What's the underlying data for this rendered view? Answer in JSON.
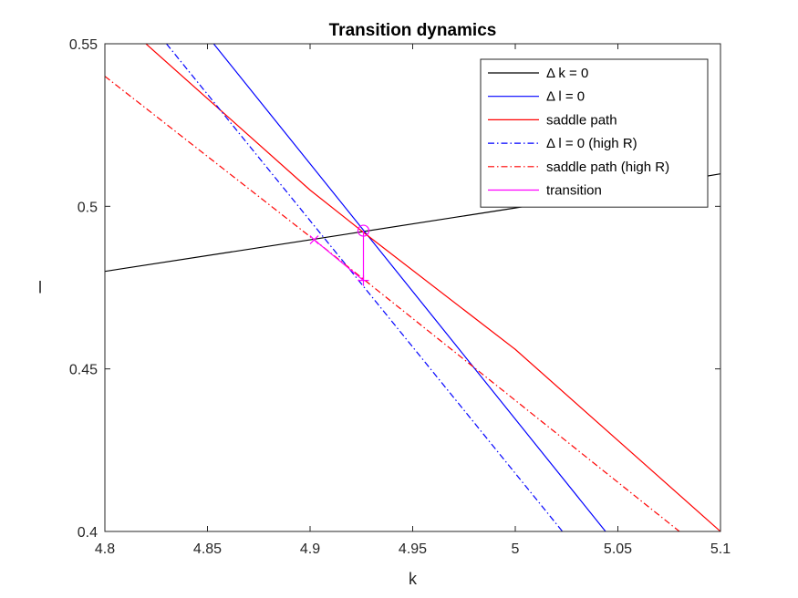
{
  "chart_data": {
    "type": "line",
    "title": "Transition dynamics",
    "xlabel": "k",
    "ylabel": "l",
    "xlim": [
      4.8,
      5.1
    ],
    "ylim": [
      0.4,
      0.55
    ],
    "xticks": [
      4.8,
      4.85,
      4.9,
      4.95,
      5,
      5.05,
      5.1
    ],
    "xtick_labels": [
      "4.8",
      "4.85",
      "4.9",
      "4.95",
      "5",
      "5.05",
      "5.1"
    ],
    "yticks": [
      0.4,
      0.45,
      0.5,
      0.55
    ],
    "ytick_labels": [
      "0.4",
      "0.45",
      "0.5",
      "0.55"
    ],
    "grid": false,
    "legend_position": "top-right",
    "series": [
      {
        "name": "Δ k = 0",
        "color": "#000000",
        "style": "solid",
        "x": [
          4.8,
          4.9,
          5.0,
          5.1
        ],
        "y": [
          0.48,
          0.4897,
          0.4995,
          0.51
        ]
      },
      {
        "name": "Δ l = 0",
        "color": "#0000ff",
        "style": "solid",
        "x": [
          4.853,
          5.044
        ],
        "y": [
          0.55,
          0.4
        ]
      },
      {
        "name": "saddle path",
        "color": "#ff0000",
        "style": "solid",
        "x": [
          4.82,
          4.9,
          4.926,
          5.0,
          5.1
        ],
        "y": [
          0.55,
          0.505,
          0.492,
          0.456,
          0.4
        ]
      },
      {
        "name": "Δ l = 0 (high R)",
        "color": "#0000ff",
        "style": "dashdot",
        "x": [
          4.83,
          5.023
        ],
        "y": [
          0.55,
          0.4
        ]
      },
      {
        "name": "saddle path (high R)",
        "color": "#ff0000",
        "style": "dashdot",
        "x": [
          4.8,
          4.902,
          5.08
        ],
        "y": [
          0.54,
          0.4897,
          0.4
        ]
      },
      {
        "name": "transition",
        "color": "#ff00ff",
        "style": "solid",
        "x": [
          4.926,
          4.926,
          4.902
        ],
        "y": [
          0.4925,
          0.4772,
          0.4897
        ]
      }
    ],
    "markers": [
      {
        "shape": "circle",
        "color": "#ff00ff",
        "x": 4.926,
        "y": 0.4925
      },
      {
        "shape": "plus",
        "color": "#ff00ff",
        "x": 4.926,
        "y": 0.4772
      },
      {
        "shape": "x",
        "color": "#ff00ff",
        "x": 4.902,
        "y": 0.4897
      }
    ]
  }
}
